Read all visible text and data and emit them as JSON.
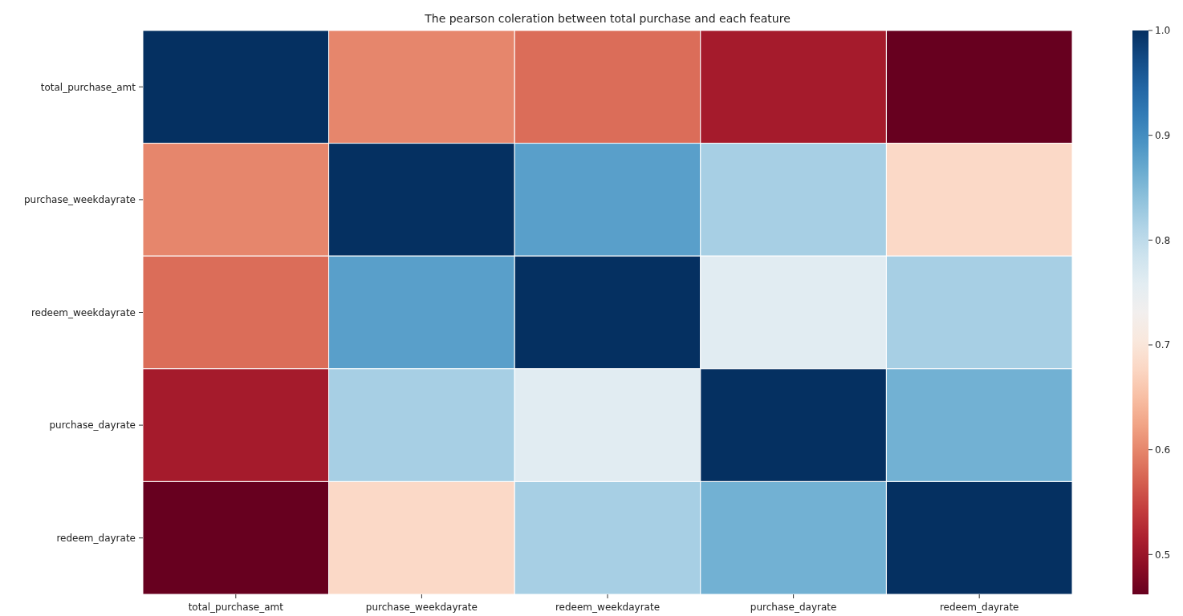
{
  "chart_data": {
    "type": "heatmap",
    "title": "The pearson coleration between total purchase and each feature",
    "categories": [
      "total_purchase_amt",
      "purchase_weekdayrate",
      "redeem_weekdayrate",
      "purchase_dayrate",
      "redeem_dayrate"
    ],
    "y_categories": [
      "total_purchase_amt",
      "purchase_weekdayrate",
      "redeem_weekdayrate",
      "purchase_dayrate",
      "redeem_dayrate"
    ],
    "cells": [
      [
        1.0,
        0.6,
        0.58,
        0.51,
        0.462
      ],
      [
        0.6,
        1.0,
        0.88,
        0.82,
        0.68
      ],
      [
        0.58,
        0.88,
        1.0,
        0.76,
        0.82
      ],
      [
        0.51,
        0.82,
        0.76,
        1.0,
        0.86
      ],
      [
        0.462,
        0.68,
        0.82,
        0.86,
        1.0
      ]
    ],
    "clim": [
      0.462,
      1.0
    ],
    "cticks": [
      {
        "value": 0.5,
        "label": "0.5"
      },
      {
        "value": 0.6,
        "label": "0.6"
      },
      {
        "value": 0.7,
        "label": "0.7"
      },
      {
        "value": 0.8,
        "label": "0.8"
      },
      {
        "value": 0.9,
        "label": "0.9"
      },
      {
        "value": 1.0,
        "label": "1.0"
      }
    ]
  }
}
